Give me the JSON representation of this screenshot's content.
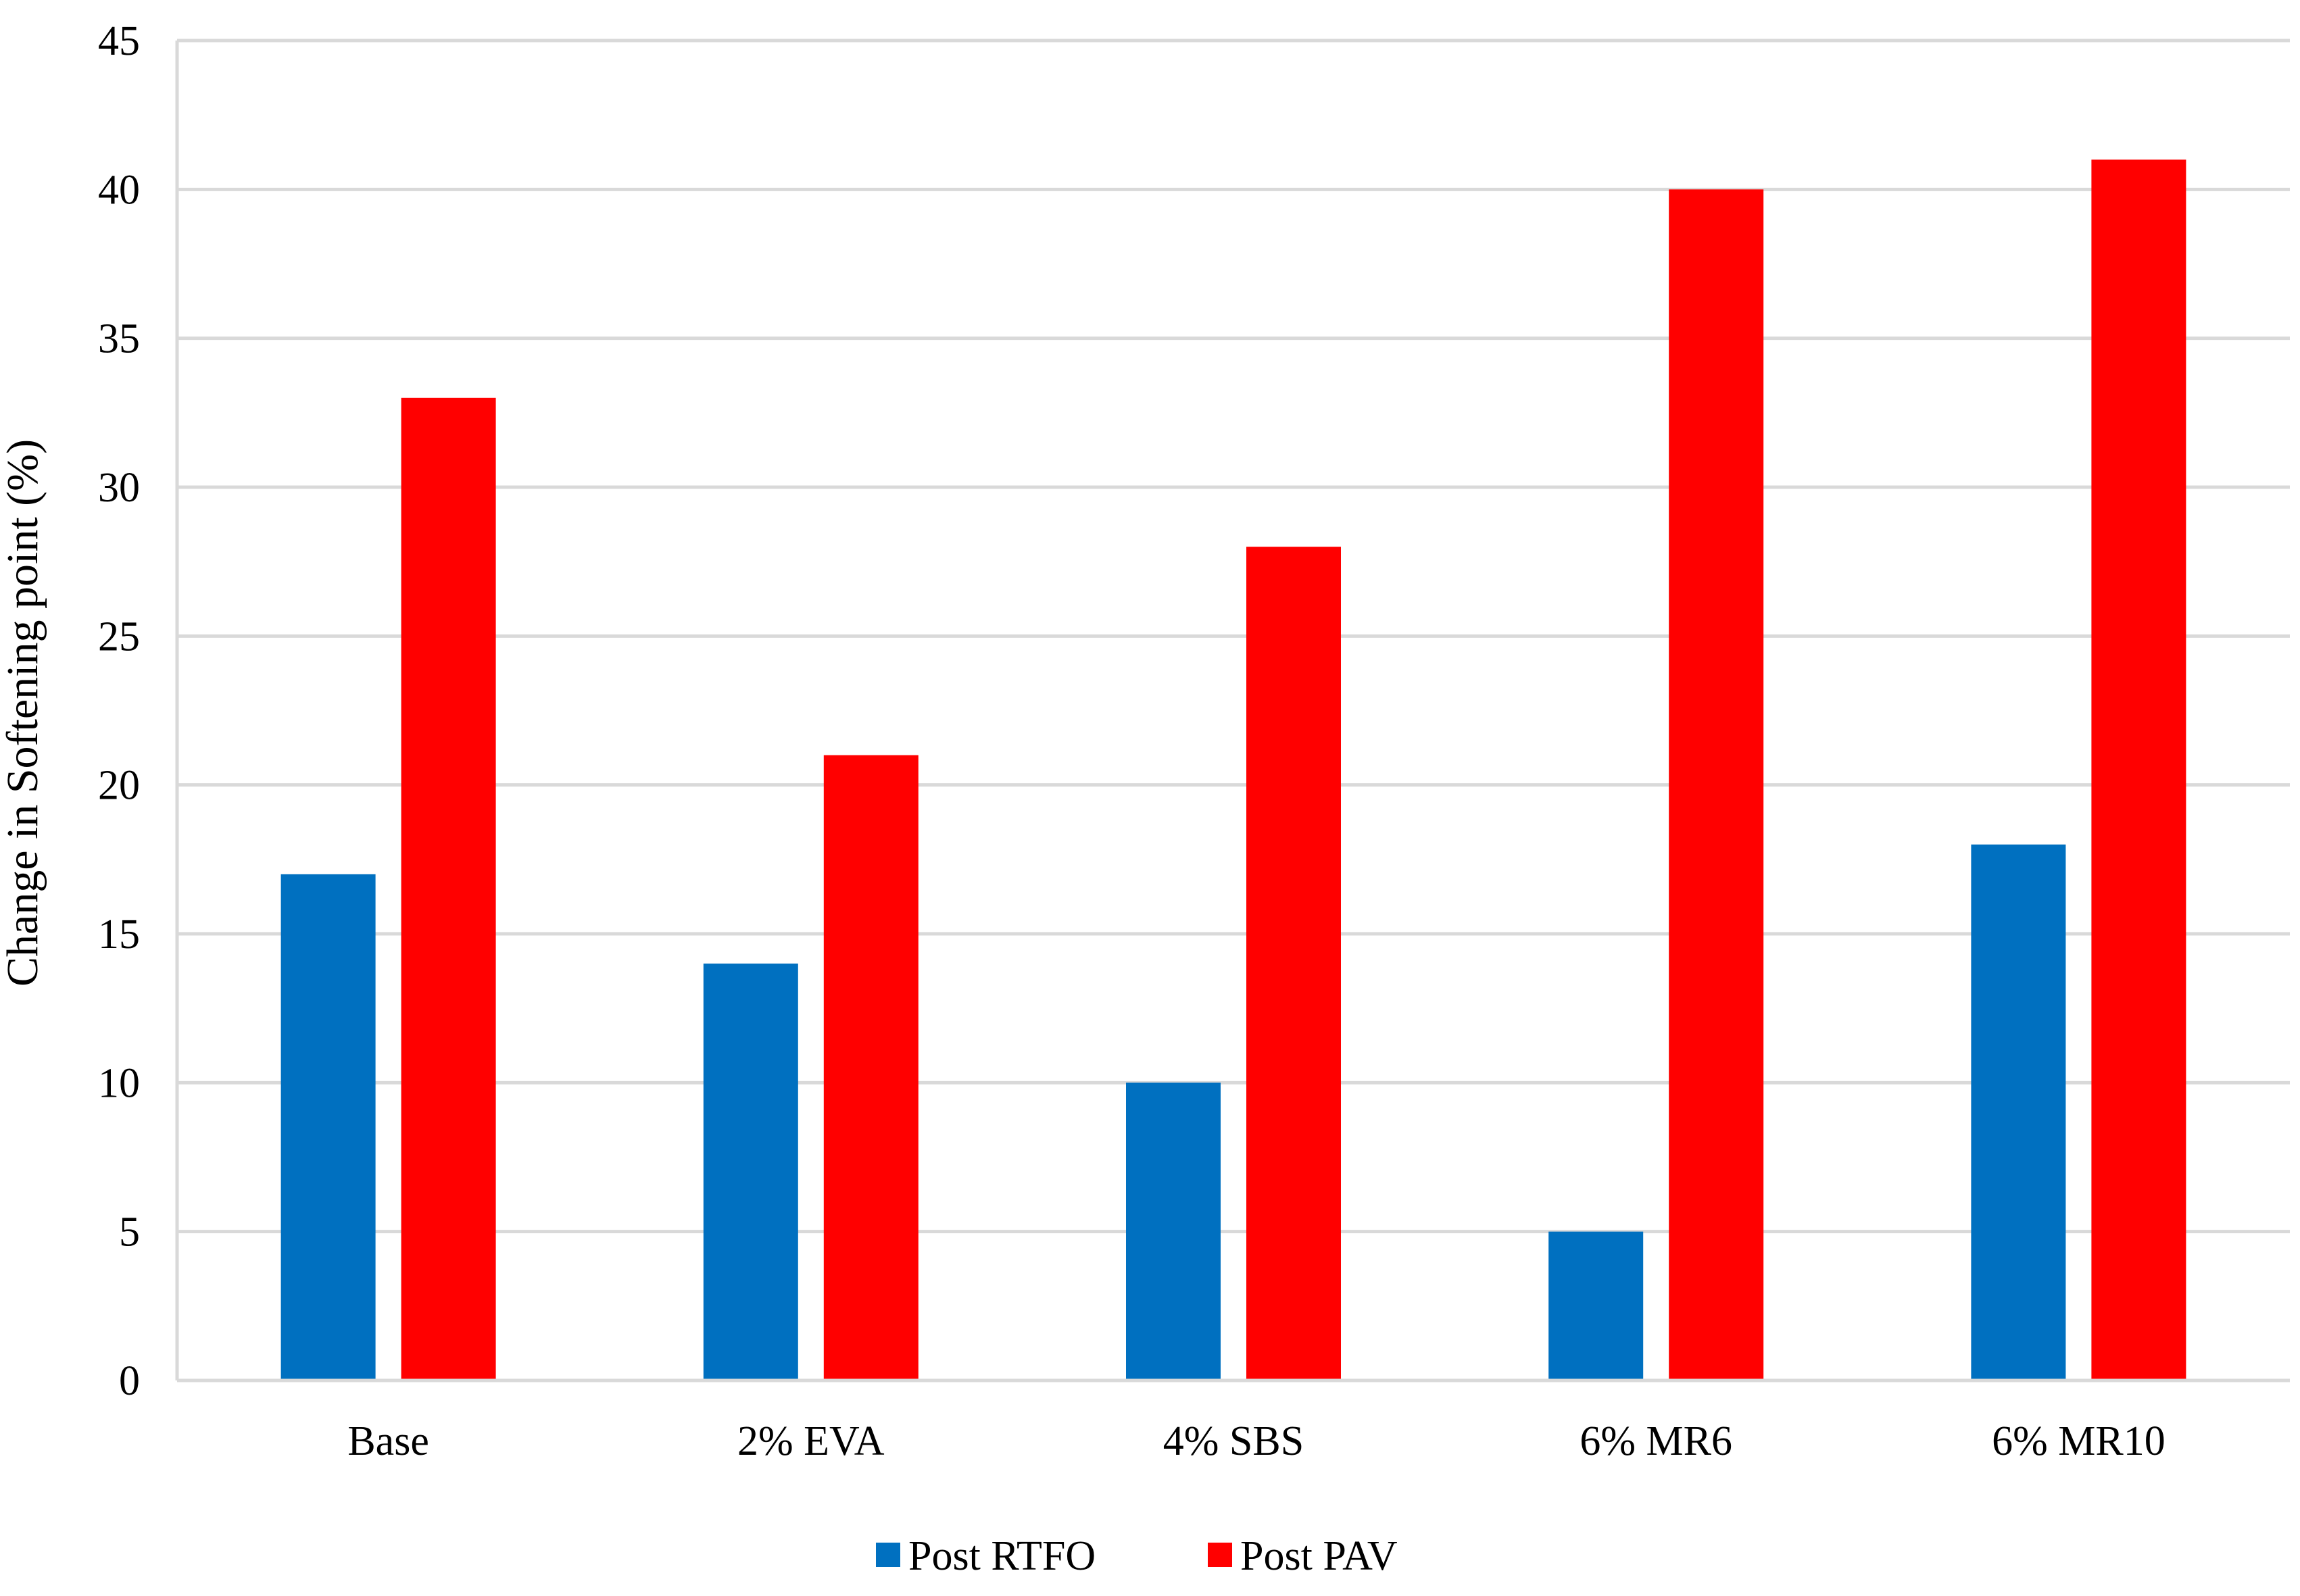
{
  "chart_data": {
    "type": "bar",
    "title": "",
    "xlabel": "",
    "ylabel": "Change in Softening point (%)",
    "ylim": [
      0,
      45
    ],
    "yticks": [
      0,
      5,
      10,
      15,
      20,
      25,
      30,
      35,
      40,
      45
    ],
    "grid": true,
    "legend_position": "bottom",
    "categories": [
      "Base",
      "2% EVA",
      "4% SBS",
      "6% MR6",
      "6% MR10"
    ],
    "series": [
      {
        "name": "Post RTFO",
        "color": "#0070C0",
        "values": [
          17,
          14,
          10,
          5,
          18
        ]
      },
      {
        "name": "Post PAV",
        "color": "#FF0000",
        "values": [
          33,
          21,
          28,
          40,
          41
        ]
      }
    ]
  }
}
